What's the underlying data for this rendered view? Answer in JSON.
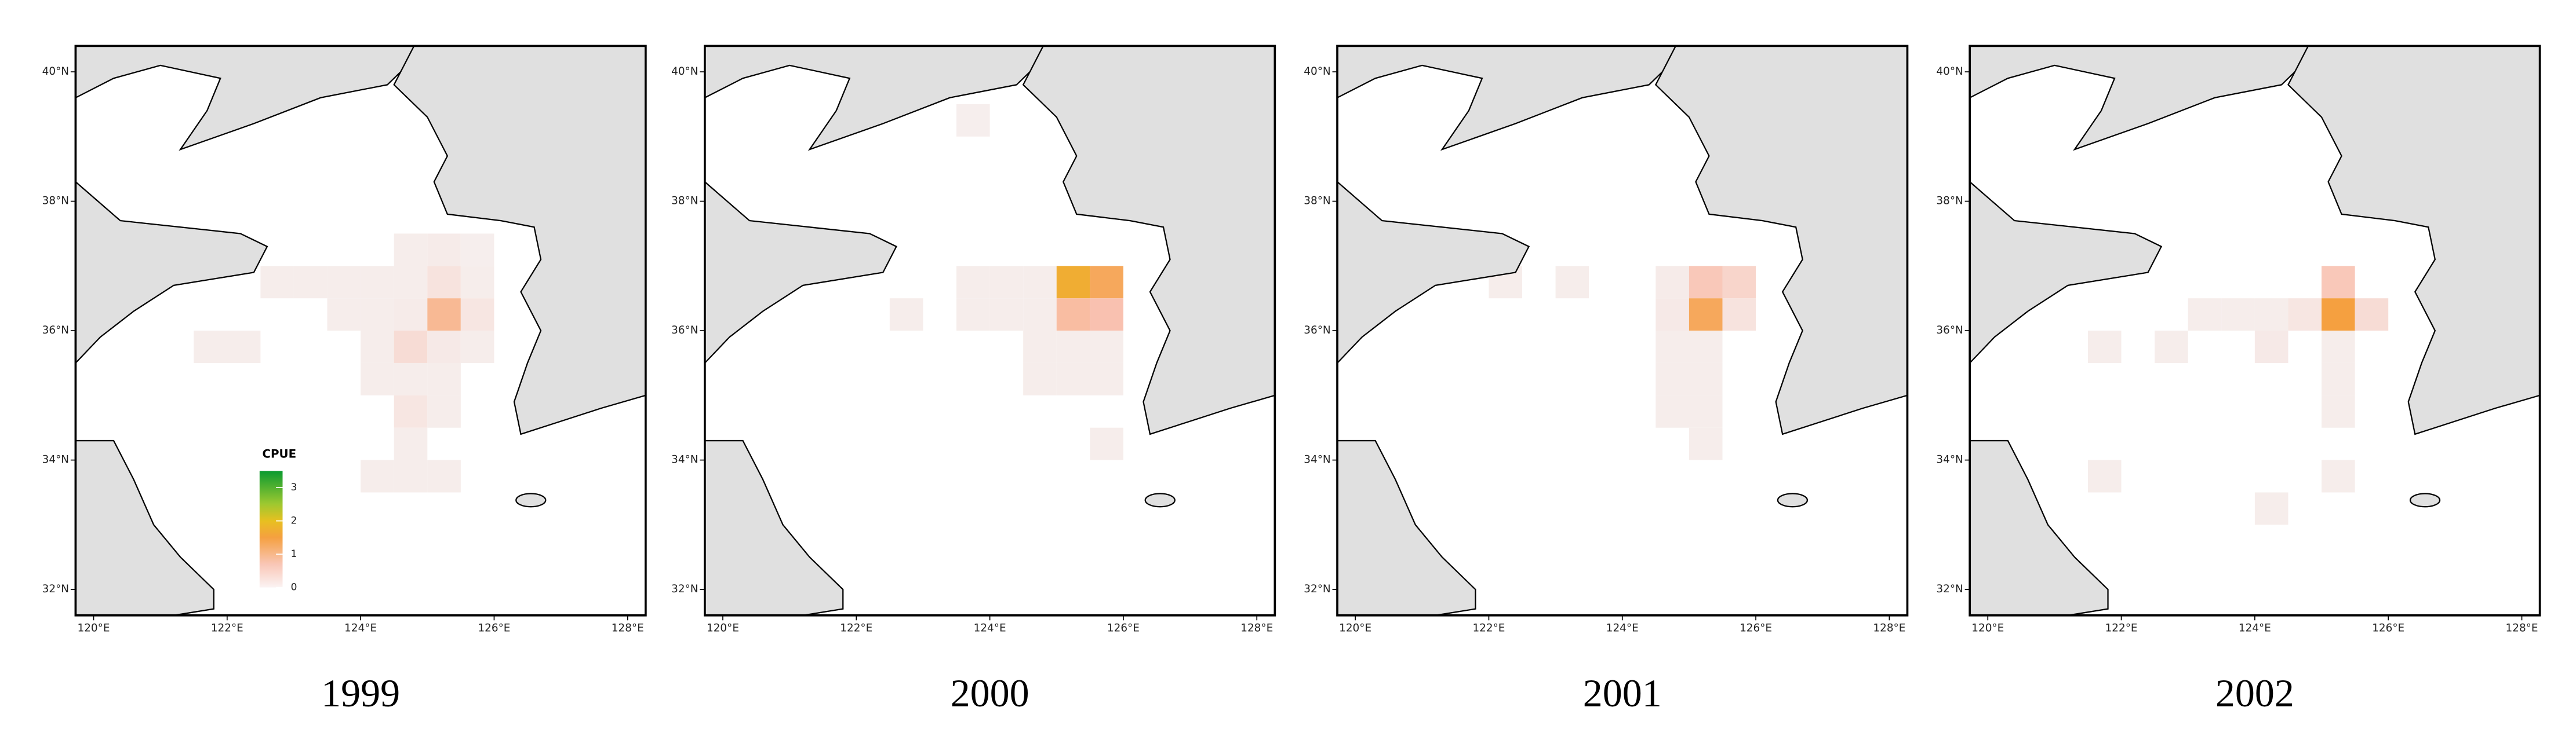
{
  "map": {
    "lon_range": [
      119.73,
      128.27
    ],
    "lat_range": [
      31.6,
      40.4
    ],
    "lon_ticks": [
      {
        "value": 120,
        "label": "120°E"
      },
      {
        "value": 122,
        "label": "122°E"
      },
      {
        "value": 124,
        "label": "124°E"
      },
      {
        "value": 126,
        "label": "126°E"
      },
      {
        "value": 128,
        "label": "128°E"
      }
    ],
    "lat_ticks": [
      {
        "value": 32,
        "label": "32°N"
      },
      {
        "value": 34,
        "label": "34°N"
      },
      {
        "value": 36,
        "label": "36°N"
      },
      {
        "value": 38,
        "label": "38°N"
      },
      {
        "value": 40,
        "label": "40°N"
      }
    ],
    "cell_size": 0.5,
    "legend": {
      "title": "CPUE",
      "range": [
        0,
        3.5
      ],
      "ticks": [
        0,
        1,
        2,
        3
      ]
    },
    "panels": [
      {
        "label": "1999",
        "cells": [
          {
            "lon": 124.5,
            "lat": 37.0,
            "cpue": 0.05
          },
          {
            "lon": 125.0,
            "lat": 37.0,
            "cpue": 0.08
          },
          {
            "lon": 125.5,
            "lat": 37.0,
            "cpue": 0.03
          },
          {
            "lon": 122.5,
            "lat": 36.5,
            "cpue": 0.05
          },
          {
            "lon": 123.0,
            "lat": 36.5,
            "cpue": 0.05
          },
          {
            "lon": 123.5,
            "lat": 36.5,
            "cpue": 0.05
          },
          {
            "lon": 124.0,
            "lat": 36.5,
            "cpue": 0.05
          },
          {
            "lon": 124.5,
            "lat": 36.5,
            "cpue": 0.05
          },
          {
            "lon": 125.0,
            "lat": 36.5,
            "cpue": 0.2
          },
          {
            "lon": 125.5,
            "lat": 36.5,
            "cpue": 0.05
          },
          {
            "lon": 123.5,
            "lat": 36.0,
            "cpue": 0.05
          },
          {
            "lon": 124.0,
            "lat": 36.0,
            "cpue": 0.05
          },
          {
            "lon": 124.5,
            "lat": 36.0,
            "cpue": 0.08
          },
          {
            "lon": 125.0,
            "lat": 36.0,
            "cpue": 0.9
          },
          {
            "lon": 125.5,
            "lat": 36.0,
            "cpue": 0.15
          },
          {
            "lon": 121.5,
            "lat": 35.5,
            "cpue": 0.05
          },
          {
            "lon": 122.0,
            "lat": 35.5,
            "cpue": 0.05
          },
          {
            "lon": 124.0,
            "lat": 35.5,
            "cpue": 0.05
          },
          {
            "lon": 124.5,
            "lat": 35.5,
            "cpue": 0.3
          },
          {
            "lon": 125.0,
            "lat": 35.5,
            "cpue": 0.1
          },
          {
            "lon": 125.5,
            "lat": 35.5,
            "cpue": 0.05
          },
          {
            "lon": 124.0,
            "lat": 35.0,
            "cpue": 0.05
          },
          {
            "lon": 124.5,
            "lat": 35.0,
            "cpue": 0.05
          },
          {
            "lon": 125.0,
            "lat": 35.0,
            "cpue": 0.05
          },
          {
            "lon": 124.5,
            "lat": 34.5,
            "cpue": 0.15
          },
          {
            "lon": 125.0,
            "lat": 34.5,
            "cpue": 0.05
          },
          {
            "lon": 124.5,
            "lat": 34.0,
            "cpue": 0.05
          },
          {
            "lon": 124.0,
            "lat": 33.5,
            "cpue": 0.05
          },
          {
            "lon": 124.5,
            "lat": 33.5,
            "cpue": 0.05
          },
          {
            "lon": 125.0,
            "lat": 33.5,
            "cpue": 0.05
          }
        ]
      },
      {
        "label": "2000",
        "cells": [
          {
            "lon": 123.5,
            "lat": 39.0,
            "cpue": 0.03
          },
          {
            "lon": 123.5,
            "lat": 36.5,
            "cpue": 0.05
          },
          {
            "lon": 124.0,
            "lat": 36.5,
            "cpue": 0.05
          },
          {
            "lon": 124.5,
            "lat": 36.5,
            "cpue": 0.05
          },
          {
            "lon": 125.0,
            "lat": 36.5,
            "cpue": 1.7
          },
          {
            "lon": 125.5,
            "lat": 36.5,
            "cpue": 1.3
          },
          {
            "lon": 122.5,
            "lat": 36.0,
            "cpue": 0.05
          },
          {
            "lon": 123.5,
            "lat": 36.0,
            "cpue": 0.05
          },
          {
            "lon": 124.0,
            "lat": 36.0,
            "cpue": 0.05
          },
          {
            "lon": 124.5,
            "lat": 36.0,
            "cpue": 0.05
          },
          {
            "lon": 125.0,
            "lat": 36.0,
            "cpue": 0.8
          },
          {
            "lon": 125.5,
            "lat": 36.0,
            "cpue": 0.7
          },
          {
            "lon": 124.5,
            "lat": 35.5,
            "cpue": 0.05
          },
          {
            "lon": 125.0,
            "lat": 35.5,
            "cpue": 0.05
          },
          {
            "lon": 125.5,
            "lat": 35.5,
            "cpue": 0.05
          },
          {
            "lon": 124.5,
            "lat": 35.0,
            "cpue": 0.05
          },
          {
            "lon": 125.0,
            "lat": 35.0,
            "cpue": 0.05
          },
          {
            "lon": 125.5,
            "lat": 35.0,
            "cpue": 0.05
          },
          {
            "lon": 125.5,
            "lat": 34.0,
            "cpue": 0.05
          }
        ]
      },
      {
        "label": "2001",
        "cells": [
          {
            "lon": 122.0,
            "lat": 36.5,
            "cpue": 0.05
          },
          {
            "lon": 123.0,
            "lat": 36.5,
            "cpue": 0.05
          },
          {
            "lon": 124.5,
            "lat": 36.5,
            "cpue": 0.08
          },
          {
            "lon": 125.0,
            "lat": 36.5,
            "cpue": 0.6
          },
          {
            "lon": 125.5,
            "lat": 36.5,
            "cpue": 0.4
          },
          {
            "lon": 124.5,
            "lat": 36.0,
            "cpue": 0.1
          },
          {
            "lon": 125.0,
            "lat": 36.0,
            "cpue": 1.3
          },
          {
            "lon": 125.5,
            "lat": 36.0,
            "cpue": 0.2
          },
          {
            "lon": 124.5,
            "lat": 35.5,
            "cpue": 0.05
          },
          {
            "lon": 125.0,
            "lat": 35.5,
            "cpue": 0.05
          },
          {
            "lon": 124.5,
            "lat": 35.0,
            "cpue": 0.05
          },
          {
            "lon": 125.0,
            "lat": 35.0,
            "cpue": 0.05
          },
          {
            "lon": 124.5,
            "lat": 34.5,
            "cpue": 0.05
          },
          {
            "lon": 125.0,
            "lat": 34.5,
            "cpue": 0.05
          },
          {
            "lon": 125.0,
            "lat": 34.0,
            "cpue": 0.05
          }
        ]
      },
      {
        "label": "2002",
        "cells": [
          {
            "lon": 125.0,
            "lat": 36.5,
            "cpue": 0.6
          },
          {
            "lon": 123.0,
            "lat": 36.0,
            "cpue": 0.05
          },
          {
            "lon": 123.5,
            "lat": 36.0,
            "cpue": 0.05
          },
          {
            "lon": 124.0,
            "lat": 36.0,
            "cpue": 0.05
          },
          {
            "lon": 124.5,
            "lat": 36.0,
            "cpue": 0.15
          },
          {
            "lon": 125.0,
            "lat": 36.0,
            "cpue": 1.5
          },
          {
            "lon": 125.5,
            "lat": 36.0,
            "cpue": 0.3
          },
          {
            "lon": 121.5,
            "lat": 35.5,
            "cpue": 0.05
          },
          {
            "lon": 122.5,
            "lat": 35.5,
            "cpue": 0.05
          },
          {
            "lon": 124.0,
            "lat": 35.5,
            "cpue": 0.1
          },
          {
            "lon": 125.0,
            "lat": 35.5,
            "cpue": 0.05
          },
          {
            "lon": 125.0,
            "lat": 35.0,
            "cpue": 0.05
          },
          {
            "lon": 125.0,
            "lat": 34.5,
            "cpue": 0.05
          },
          {
            "lon": 121.5,
            "lat": 33.5,
            "cpue": 0.05
          },
          {
            "lon": 125.0,
            "lat": 33.5,
            "cpue": 0.05
          },
          {
            "lon": 124.0,
            "lat": 33.0,
            "cpue": 0.05
          }
        ]
      }
    ]
  }
}
